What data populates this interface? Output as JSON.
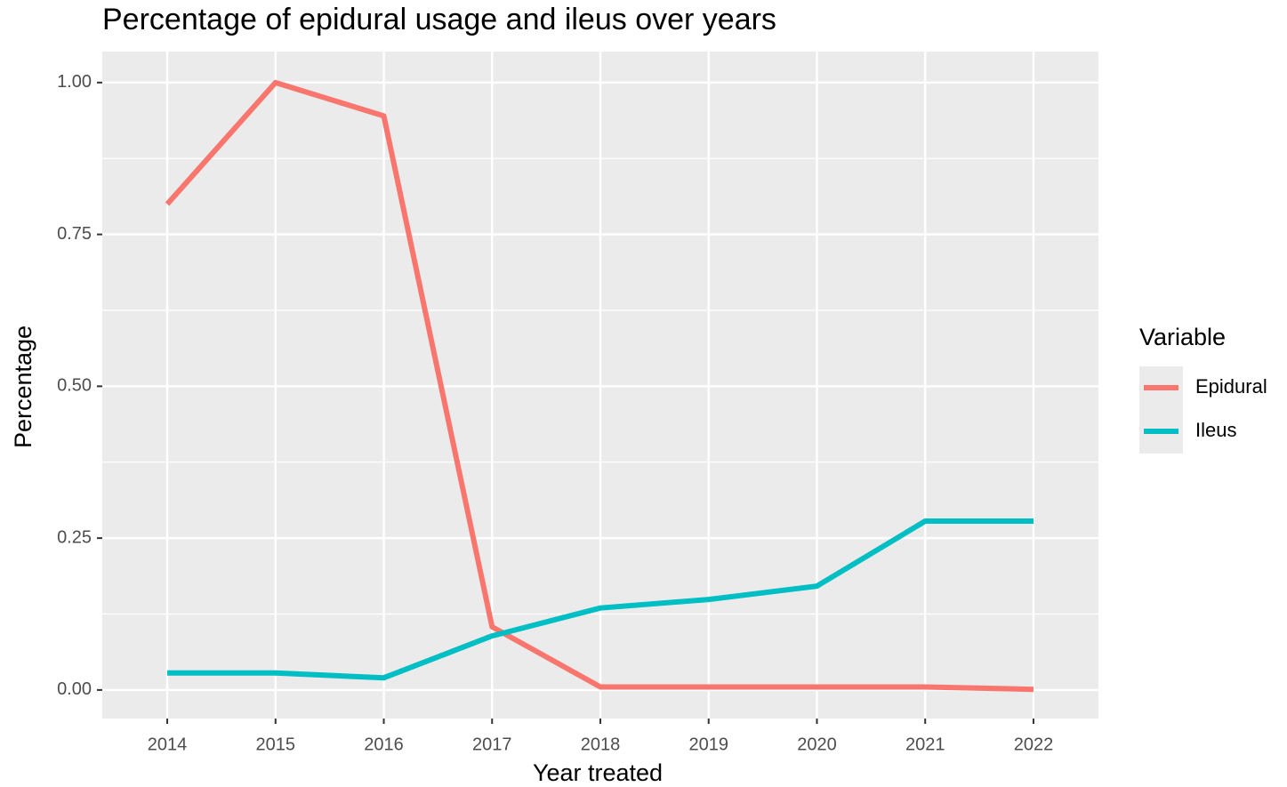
{
  "chart_data": {
    "type": "line",
    "title": "Percentage of epidural usage and ileus over years",
    "x_label": "Year treated",
    "y_label": "Percentage",
    "x": [
      2014,
      2015,
      2016,
      2017,
      2018,
      2019,
      2020,
      2021,
      2022
    ],
    "series": [
      {
        "name": "Epidural",
        "color": "#f8766d",
        "values": [
          0.8,
          1.0,
          0.945,
          0.104,
          0.005,
          0.005,
          0.005,
          0.005,
          0.001
        ]
      },
      {
        "name": "Ileus",
        "color": "#00bfc4",
        "values": [
          0.028,
          0.028,
          0.02,
          0.089,
          0.135,
          0.149,
          0.171,
          0.278,
          0.278
        ]
      }
    ],
    "xlim": [
      2013.4,
      2022.6
    ],
    "ylim": [
      -0.047,
      1.051
    ],
    "xticks": [
      2014,
      2015,
      2016,
      2017,
      2018,
      2019,
      2020,
      2021,
      2022
    ],
    "yticks": [
      {
        "value": 0,
        "label": "0.00"
      },
      {
        "value": 0.25,
        "label": "0.25"
      },
      {
        "value": 0.5,
        "label": "0.50"
      },
      {
        "value": 0.75,
        "label": "0.75"
      },
      {
        "value": 1,
        "label": "1.00"
      }
    ],
    "grid": true,
    "legend_title": "Variable",
    "legend_position": "right"
  }
}
